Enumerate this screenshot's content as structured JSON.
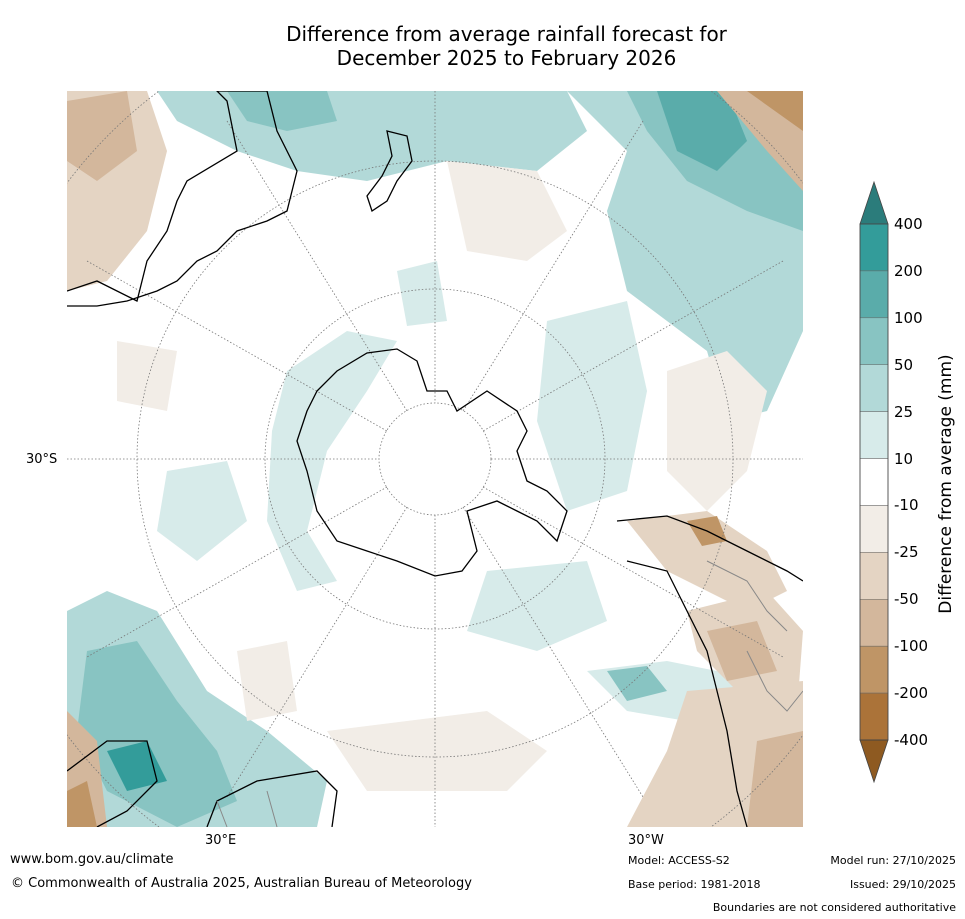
{
  "title": {
    "line1": "Difference from average rainfall forecast for",
    "line2": "December 2025 to February 2026"
  },
  "map": {
    "projection": "south polar stereographic",
    "lat_label": "30°S",
    "lon_labels": [
      "30°E",
      "30°W"
    ]
  },
  "colorbar": {
    "title": "Difference from average (mm)",
    "ticks": [
      "400",
      "200",
      "100",
      "50",
      "25",
      "10",
      "-10",
      "-25",
      "-50",
      "-100",
      "-200",
      "-400"
    ],
    "colors": [
      "#2b7c7b",
      "#339c9a",
      "#5aacaa",
      "#88c4c2",
      "#b2d9d8",
      "#d7ebea",
      "#ffffff",
      "#f2ede7",
      "#e4d4c3",
      "#d3b79c",
      "#bf9566",
      "#ab7339",
      "#8e5a21"
    ]
  },
  "footer": {
    "website": "www.bom.gov.au/climate",
    "copyright": "© Commonwealth of Australia 2025, Australian Bureau of Meteorology",
    "model": "Model: ACCESS-S2",
    "base_period": "Base period: 1981-2018",
    "model_run": "Model run: 27/10/2025",
    "issued": "Issued: 29/10/2025",
    "disclaimer": "Boundaries are not considered authoritative"
  }
}
